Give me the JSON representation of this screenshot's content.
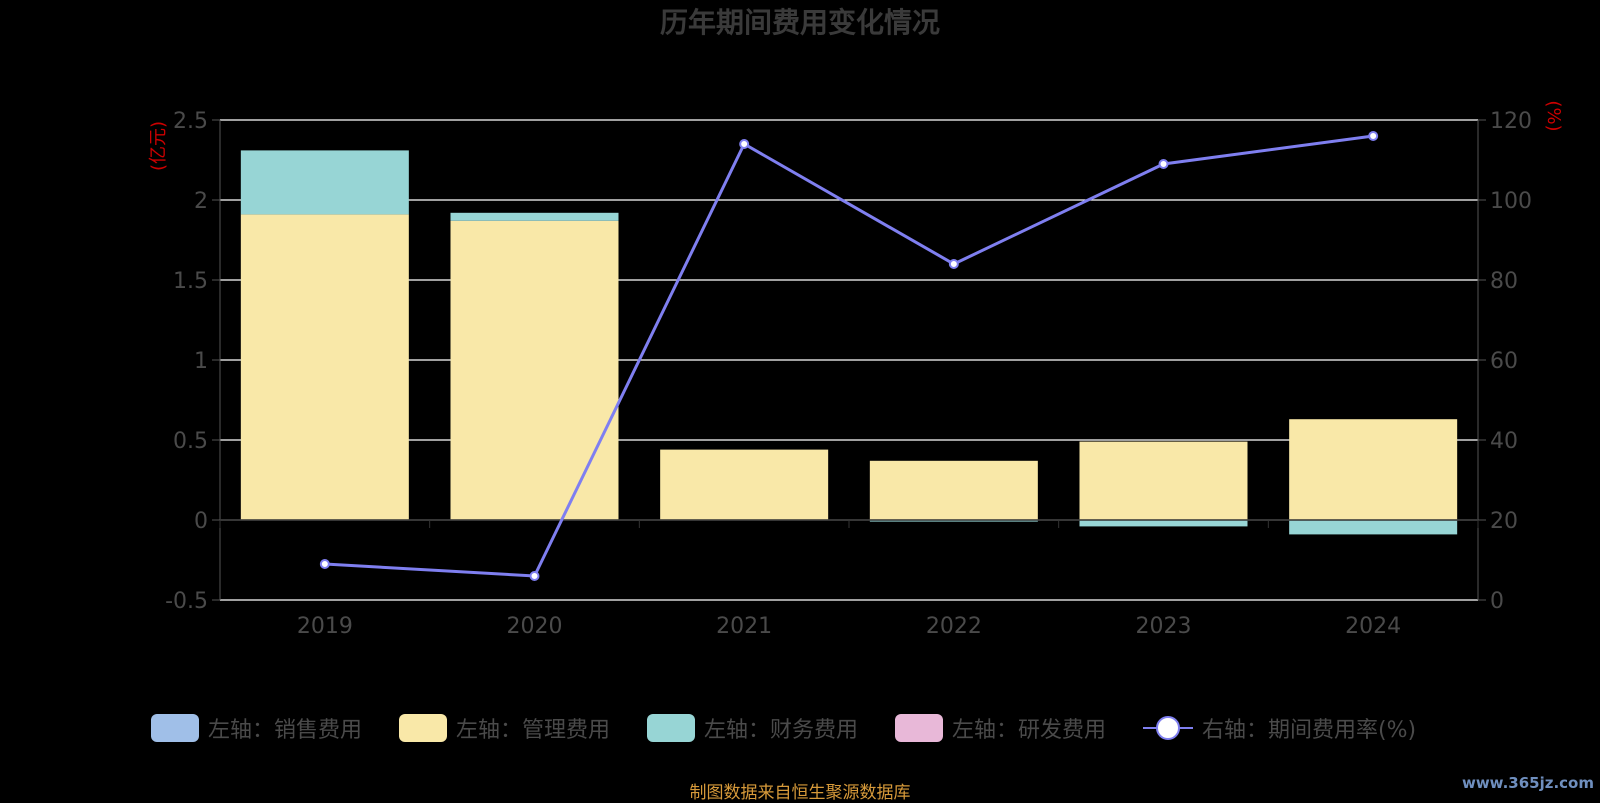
{
  "chart_data": {
    "type": "bar",
    "title": "历年期间费用变化情况",
    "ylabel_left": "(亿元)",
    "ylabel_right": "(%)",
    "categories": [
      "2019",
      "2020",
      "2021",
      "2022",
      "2023",
      "2024"
    ],
    "ylim_left": [
      -0.5,
      2.5
    ],
    "yticks_left": [
      "-0.5",
      "0",
      "0.5",
      "1",
      "1.5",
      "2",
      "2.5"
    ],
    "ylim_right": [
      0,
      120
    ],
    "yticks_right": [
      "0",
      "20",
      "40",
      "60",
      "80",
      "100",
      "120"
    ],
    "grid": true,
    "series": [
      {
        "name": "左轴：销售费用",
        "axis": "left",
        "type": "bar",
        "color": "#a0bfe8",
        "values": [
          0,
          0,
          0,
          0,
          0,
          0
        ]
      },
      {
        "name": "左轴：管理费用",
        "axis": "left",
        "type": "bar",
        "color": "#f9e8a8",
        "values": [
          1.91,
          1.87,
          0.44,
          0.37,
          0.49,
          0.63
        ]
      },
      {
        "name": "左轴：财务费用",
        "axis": "left",
        "type": "bar",
        "color": "#97d5d5",
        "values": [
          0.4,
          0.05,
          0.0,
          -0.01,
          -0.04,
          -0.09
        ]
      },
      {
        "name": "左轴：研发费用",
        "axis": "left",
        "type": "bar",
        "color": "#e8b8d8",
        "values": [
          0,
          0,
          0,
          0,
          0,
          0
        ]
      },
      {
        "name": "右轴：期间费用率(%)",
        "axis": "right",
        "type": "line",
        "color": "#7f7ff0",
        "values": [
          9.0,
          6.0,
          114.0,
          84.0,
          109.0,
          116.0
        ]
      }
    ]
  },
  "footer": "制图数据来自恒生聚源数据库",
  "watermark": "www.365jz.com"
}
